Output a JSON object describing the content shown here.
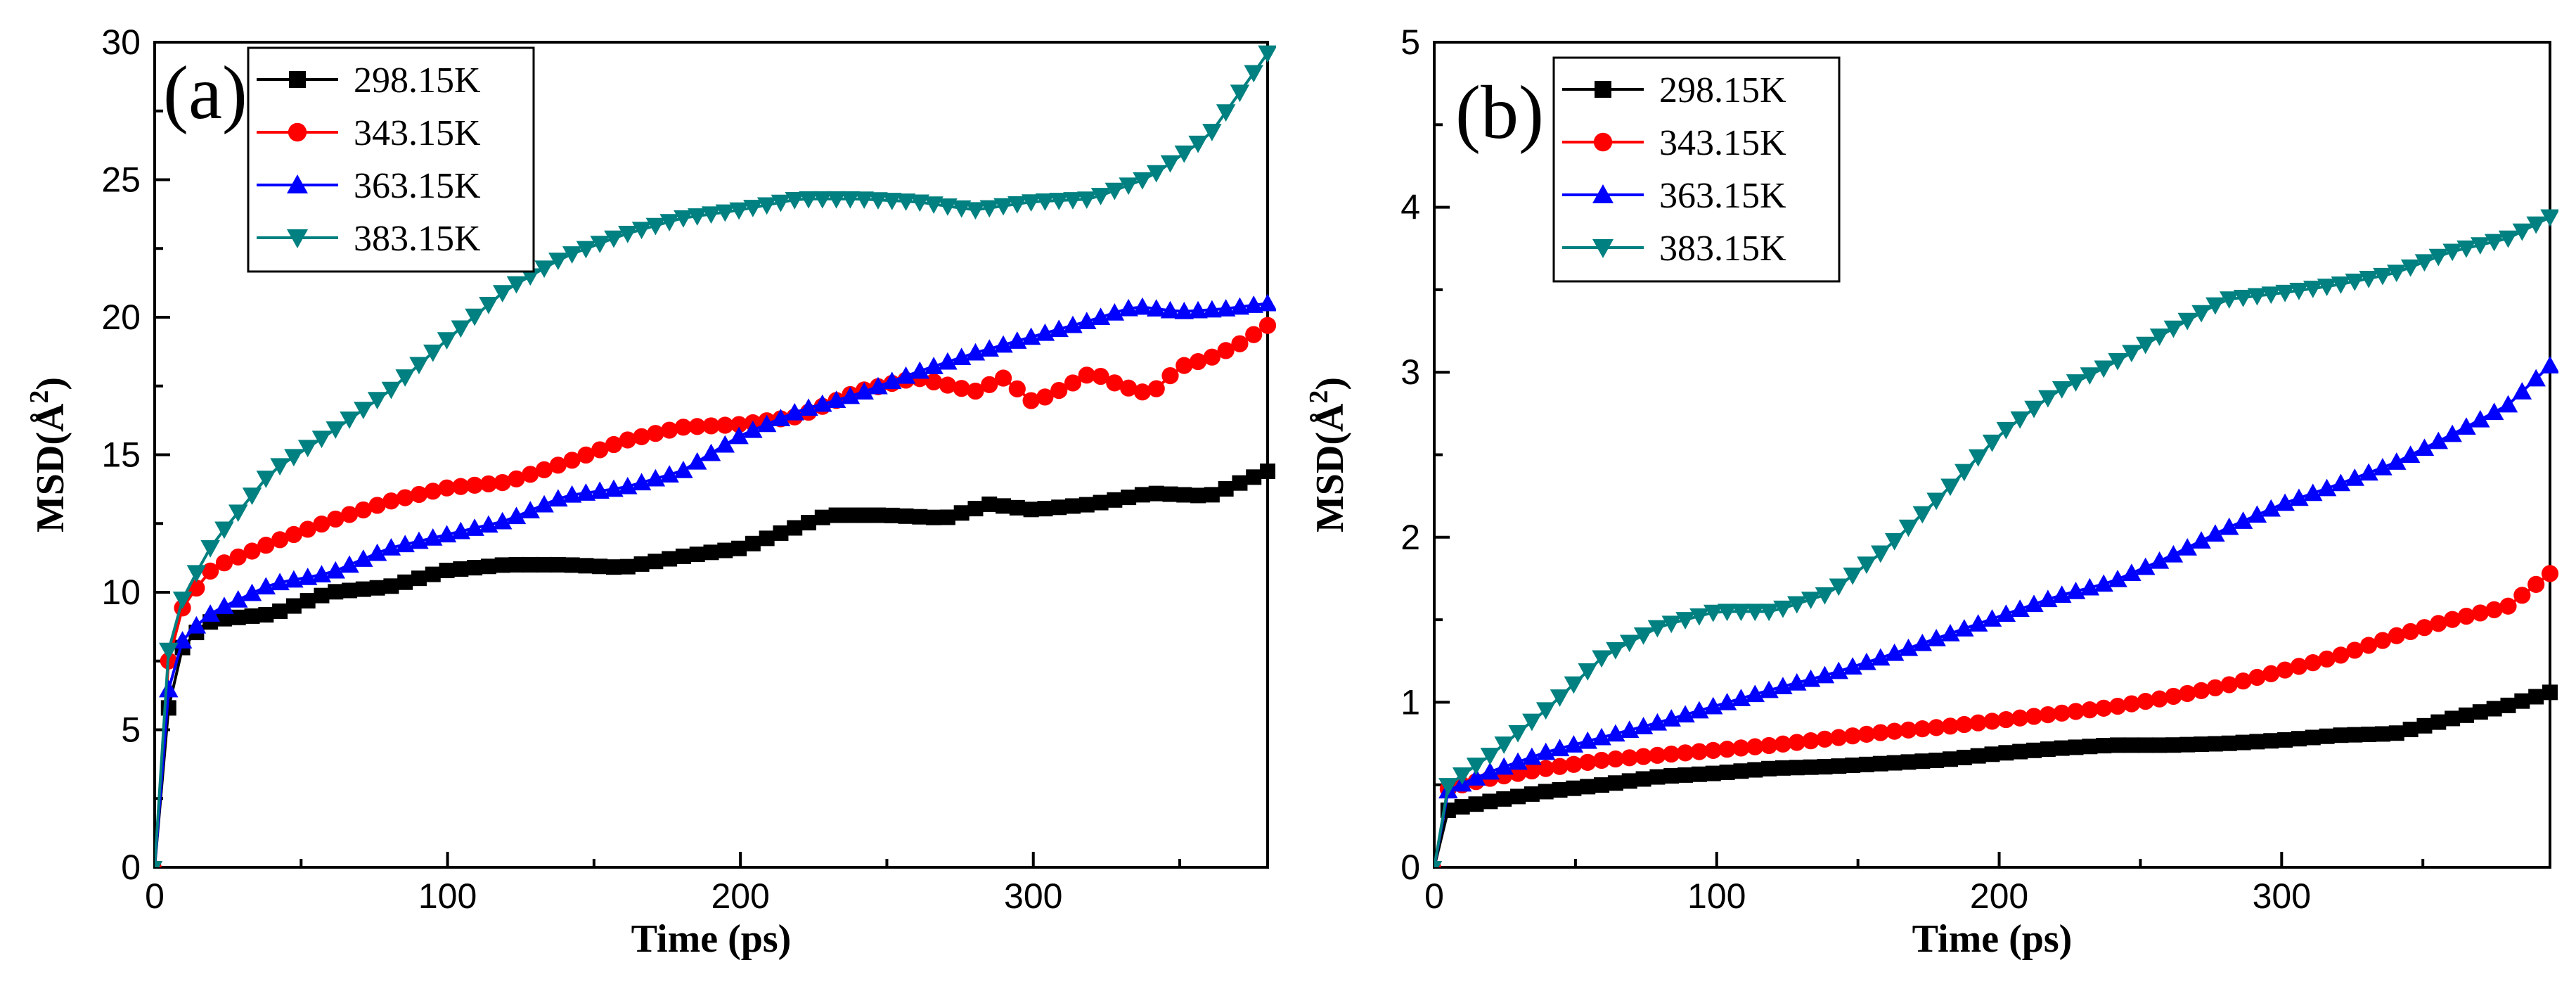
{
  "chart_data": [
    {
      "type": "line",
      "panel_label": "(a)",
      "xlabel": "Time (ps)",
      "ylabel": "MSD(",
      "ylabel_unit": "Å",
      "ylabel_sup": "2",
      "ylabel_end": ")",
      "xlim": [
        0,
        380
      ],
      "ylim": [
        0,
        30
      ],
      "xticks": [
        0,
        100,
        200,
        300
      ],
      "yticks": [
        0,
        5,
        10,
        15,
        20,
        25,
        30
      ],
      "legend_position": "top-left",
      "series": [
        {
          "name": "298.15K",
          "color": "#000000",
          "marker": "square",
          "x": [
            0,
            5,
            10,
            20,
            40,
            60,
            80,
            100,
            120,
            140,
            160,
            180,
            200,
            215,
            230,
            250,
            270,
            285,
            300,
            320,
            340,
            360,
            380
          ],
          "y": [
            0,
            6.1,
            8.2,
            9.0,
            9.2,
            10.0,
            10.2,
            10.8,
            11.0,
            11.0,
            10.9,
            11.3,
            11.6,
            12.2,
            12.8,
            12.8,
            12.7,
            13.2,
            13.0,
            13.2,
            13.6,
            13.5,
            14.4
          ]
        },
        {
          "name": "343.15K",
          "color": "#ff0000",
          "marker": "circle",
          "x": [
            0,
            5,
            10,
            20,
            40,
            60,
            80,
            100,
            120,
            140,
            160,
            180,
            200,
            220,
            240,
            260,
            280,
            290,
            300,
            310,
            320,
            330,
            340,
            350,
            360,
            370,
            380
          ],
          "y": [
            0,
            7.9,
            9.6,
            10.9,
            11.8,
            12.6,
            13.3,
            13.8,
            14.0,
            14.7,
            15.5,
            16.0,
            16.1,
            16.4,
            17.3,
            17.8,
            17.3,
            17.8,
            16.9,
            17.4,
            18.0,
            17.5,
            17.2,
            18.2,
            18.5,
            19.0,
            19.7
          ]
        },
        {
          "name": "363.15K",
          "color": "#0000ff",
          "marker": "triangle-up",
          "x": [
            0,
            5,
            10,
            20,
            40,
            60,
            80,
            100,
            120,
            140,
            160,
            180,
            200,
            220,
            240,
            260,
            280,
            300,
            320,
            335,
            350,
            365,
            380
          ],
          "y": [
            0,
            6.8,
            8.4,
            9.3,
            10.3,
            10.7,
            11.6,
            12.1,
            12.6,
            13.5,
            13.8,
            14.4,
            15.7,
            16.6,
            17.2,
            18.0,
            18.7,
            19.3,
            19.9,
            20.4,
            20.2,
            20.3,
            20.5
          ]
        },
        {
          "name": "383.15K",
          "color": "#008080",
          "marker": "triangle-down",
          "x": [
            0,
            5,
            10,
            20,
            40,
            60,
            80,
            100,
            120,
            140,
            160,
            180,
            200,
            220,
            240,
            260,
            280,
            300,
            320,
            340,
            360,
            380
          ],
          "y": [
            0,
            8.3,
            9.9,
            11.8,
            14.4,
            15.8,
            17.3,
            19.2,
            21.0,
            22.2,
            23.0,
            23.6,
            23.9,
            24.3,
            24.3,
            24.2,
            23.9,
            24.2,
            24.3,
            25.1,
            26.6,
            29.6
          ]
        }
      ]
    },
    {
      "type": "line",
      "panel_label": "(b)",
      "xlabel": "Time (ps)",
      "ylabel": "MSD(",
      "ylabel_unit": "Å",
      "ylabel_sup": "2",
      "ylabel_end": ")",
      "xlim": [
        0,
        395
      ],
      "ylim": [
        0,
        5
      ],
      "xticks": [
        0,
        100,
        200,
        300
      ],
      "yticks": [
        0,
        1,
        2,
        3,
        4,
        5
      ],
      "legend_position": "top-left",
      "series": [
        {
          "name": "298.15K",
          "color": "#000000",
          "marker": "square",
          "x": [
            0,
            5,
            20,
            40,
            60,
            80,
            100,
            120,
            140,
            160,
            180,
            200,
            220,
            240,
            260,
            280,
            300,
            320,
            340,
            360,
            380,
            395
          ],
          "y": [
            0,
            0.35,
            0.4,
            0.46,
            0.5,
            0.55,
            0.57,
            0.6,
            0.61,
            0.63,
            0.65,
            0.69,
            0.72,
            0.74,
            0.74,
            0.75,
            0.77,
            0.8,
            0.81,
            0.9,
            0.98,
            1.06
          ]
        },
        {
          "name": "343.15K",
          "color": "#ff0000",
          "marker": "circle",
          "x": [
            0,
            5,
            20,
            40,
            60,
            80,
            100,
            120,
            140,
            160,
            180,
            200,
            220,
            240,
            260,
            280,
            300,
            320,
            340,
            360,
            380,
            395
          ],
          "y": [
            0,
            0.48,
            0.54,
            0.6,
            0.65,
            0.68,
            0.71,
            0.74,
            0.78,
            0.82,
            0.85,
            0.89,
            0.93,
            0.97,
            1.03,
            1.1,
            1.19,
            1.28,
            1.4,
            1.5,
            1.58,
            1.78
          ]
        },
        {
          "name": "363.15K",
          "color": "#0000ff",
          "marker": "triangle-up",
          "x": [
            0,
            5,
            20,
            40,
            60,
            80,
            100,
            120,
            140,
            160,
            180,
            200,
            220,
            240,
            260,
            280,
            300,
            320,
            340,
            360,
            380,
            395
          ],
          "y": [
            0,
            0.47,
            0.58,
            0.7,
            0.79,
            0.88,
            0.98,
            1.08,
            1.17,
            1.28,
            1.4,
            1.52,
            1.64,
            1.73,
            1.88,
            2.05,
            2.2,
            2.32,
            2.45,
            2.62,
            2.8,
            3.04
          ]
        },
        {
          "name": "383.15K",
          "color": "#008080",
          "marker": "triangle-down",
          "x": [
            0,
            5,
            20,
            40,
            60,
            80,
            100,
            120,
            140,
            160,
            180,
            200,
            220,
            240,
            260,
            280,
            300,
            320,
            340,
            360,
            380,
            395
          ],
          "y": [
            0,
            0.5,
            0.68,
            0.96,
            1.28,
            1.46,
            1.55,
            1.55,
            1.66,
            1.93,
            2.26,
            2.62,
            2.88,
            3.05,
            3.25,
            3.44,
            3.48,
            3.53,
            3.6,
            3.73,
            3.81,
            3.94
          ]
        }
      ]
    }
  ]
}
